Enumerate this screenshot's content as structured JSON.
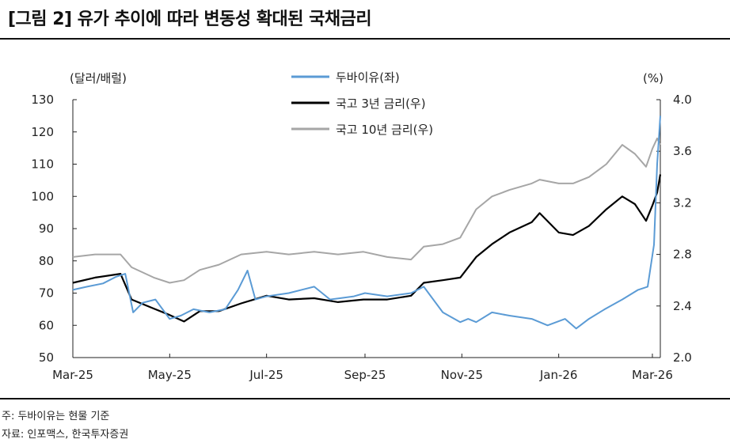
{
  "title": "[그림 2] 유가 추이에 따라 변동성 확대된 국채금리",
  "note": "주: 두바이유는 현물 기준",
  "source": "자료: 인포맥스, 한국투자증권",
  "chart_data": {
    "type": "line",
    "y_left_unit": "(달러/배럴)",
    "y_right_unit": "(%)",
    "y_left_lim": [
      50,
      130
    ],
    "y_left_ticks": [
      "50",
      "60",
      "70",
      "80",
      "90",
      "100",
      "110",
      "120",
      "130"
    ],
    "y_right_lim": [
      2.0,
      4.0
    ],
    "y_right_ticks": [
      "2.0",
      "2.4",
      "2.8",
      "3.2",
      "3.6",
      "4.0"
    ],
    "x_ticks": [
      "Mar-25",
      "May-25",
      "Jul-25",
      "Sep-25",
      "Nov-25",
      "Jan-26",
      "Mar-26"
    ],
    "x_tick_dates": [
      "2025-03-01",
      "2025-05-01",
      "2025-07-01",
      "2025-09-01",
      "2025-11-01",
      "2026-01-01",
      "2026-03-01"
    ],
    "x_lim": [
      "2025-03-01",
      "2026-03-06"
    ],
    "legend_position": "top-center",
    "series": [
      {
        "name": "두바이유(좌)",
        "axis": "left",
        "color": "#5b9bd5",
        "points": [
          [
            "2025-03-01",
            71
          ],
          [
            "2025-03-10",
            72
          ],
          [
            "2025-03-20",
            73
          ],
          [
            "2025-03-28",
            75
          ],
          [
            "2025-04-03",
            76
          ],
          [
            "2025-04-08",
            64
          ],
          [
            "2025-04-14",
            67
          ],
          [
            "2025-04-22",
            68
          ],
          [
            "2025-05-01",
            62
          ],
          [
            "2025-05-08",
            63
          ],
          [
            "2025-05-16",
            65
          ],
          [
            "2025-05-26",
            64
          ],
          [
            "2025-06-05",
            65
          ],
          [
            "2025-06-13",
            71
          ],
          [
            "2025-06-19",
            77
          ],
          [
            "2025-06-24",
            68
          ],
          [
            "2025-07-01",
            69
          ],
          [
            "2025-07-15",
            70
          ],
          [
            "2025-07-31",
            72
          ],
          [
            "2025-08-10",
            68
          ],
          [
            "2025-08-25",
            69
          ],
          [
            "2025-09-01",
            70
          ],
          [
            "2025-09-15",
            69
          ],
          [
            "2025-09-30",
            70
          ],
          [
            "2025-10-08",
            72
          ],
          [
            "2025-10-20",
            64
          ],
          [
            "2025-10-31",
            61
          ],
          [
            "2025-11-05",
            62
          ],
          [
            "2025-11-10",
            61
          ],
          [
            "2025-11-20",
            64
          ],
          [
            "2025-12-01",
            63
          ],
          [
            "2025-12-15",
            62
          ],
          [
            "2025-12-25",
            60
          ],
          [
            "2026-01-05",
            62
          ],
          [
            "2026-01-12",
            59
          ],
          [
            "2026-01-20",
            62
          ],
          [
            "2026-01-30",
            65
          ],
          [
            "2026-02-10",
            68
          ],
          [
            "2026-02-20",
            71
          ],
          [
            "2026-02-26",
            72
          ],
          [
            "2026-03-02",
            85
          ],
          [
            "2026-03-04",
            110
          ],
          [
            "2026-03-06",
            125
          ]
        ]
      },
      {
        "name": "국고 3년 금리(우)",
        "axis": "right",
        "color": "#000000",
        "points": [
          [
            "2025-03-01",
            2.58
          ],
          [
            "2025-03-15",
            2.62
          ],
          [
            "2025-03-31",
            2.65
          ],
          [
            "2025-04-07",
            2.45
          ],
          [
            "2025-04-21",
            2.38
          ],
          [
            "2025-05-01",
            2.33
          ],
          [
            "2025-05-10",
            2.28
          ],
          [
            "2025-05-20",
            2.36
          ],
          [
            "2025-06-01",
            2.36
          ],
          [
            "2025-06-15",
            2.42
          ],
          [
            "2025-07-01",
            2.48
          ],
          [
            "2025-07-15",
            2.45
          ],
          [
            "2025-07-31",
            2.46
          ],
          [
            "2025-08-15",
            2.43
          ],
          [
            "2025-08-31",
            2.45
          ],
          [
            "2025-09-15",
            2.45
          ],
          [
            "2025-09-30",
            2.48
          ],
          [
            "2025-10-08",
            2.58
          ],
          [
            "2025-10-20",
            2.6
          ],
          [
            "2025-10-31",
            2.62
          ],
          [
            "2025-11-10",
            2.78
          ],
          [
            "2025-11-20",
            2.88
          ],
          [
            "2025-12-01",
            2.97
          ],
          [
            "2025-12-15",
            3.05
          ],
          [
            "2025-12-20",
            3.12
          ],
          [
            "2026-01-01",
            2.97
          ],
          [
            "2026-01-10",
            2.95
          ],
          [
            "2026-01-20",
            3.02
          ],
          [
            "2026-01-31",
            3.15
          ],
          [
            "2026-02-10",
            3.25
          ],
          [
            "2026-02-18",
            3.19
          ],
          [
            "2026-02-25",
            3.06
          ],
          [
            "2026-03-01",
            3.18
          ],
          [
            "2026-03-04",
            3.28
          ],
          [
            "2026-03-06",
            3.42
          ]
        ]
      },
      {
        "name": "국고 10년 금리(우)",
        "axis": "right",
        "color": "#a6a6a6",
        "points": [
          [
            "2025-03-01",
            2.78
          ],
          [
            "2025-03-15",
            2.8
          ],
          [
            "2025-03-31",
            2.8
          ],
          [
            "2025-04-07",
            2.7
          ],
          [
            "2025-04-21",
            2.62
          ],
          [
            "2025-05-01",
            2.58
          ],
          [
            "2025-05-10",
            2.6
          ],
          [
            "2025-05-20",
            2.68
          ],
          [
            "2025-06-01",
            2.72
          ],
          [
            "2025-06-15",
            2.8
          ],
          [
            "2025-07-01",
            2.82
          ],
          [
            "2025-07-15",
            2.8
          ],
          [
            "2025-07-31",
            2.82
          ],
          [
            "2025-08-15",
            2.8
          ],
          [
            "2025-08-31",
            2.82
          ],
          [
            "2025-09-15",
            2.78
          ],
          [
            "2025-09-30",
            2.76
          ],
          [
            "2025-10-08",
            2.86
          ],
          [
            "2025-10-20",
            2.88
          ],
          [
            "2025-10-31",
            2.93
          ],
          [
            "2025-11-10",
            3.15
          ],
          [
            "2025-11-20",
            3.25
          ],
          [
            "2025-12-01",
            3.3
          ],
          [
            "2025-12-15",
            3.35
          ],
          [
            "2025-12-20",
            3.38
          ],
          [
            "2026-01-01",
            3.35
          ],
          [
            "2026-01-10",
            3.35
          ],
          [
            "2026-01-20",
            3.4
          ],
          [
            "2026-01-31",
            3.5
          ],
          [
            "2026-02-10",
            3.65
          ],
          [
            "2026-02-18",
            3.58
          ],
          [
            "2026-02-25",
            3.48
          ],
          [
            "2026-03-01",
            3.62
          ],
          [
            "2026-03-04",
            3.7
          ],
          [
            "2026-03-06",
            3.65
          ]
        ]
      }
    ]
  }
}
